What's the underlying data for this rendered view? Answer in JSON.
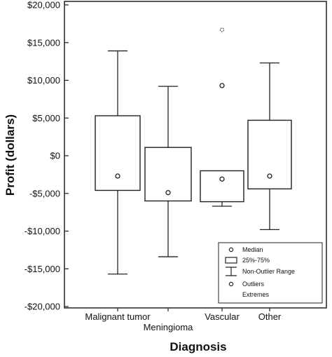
{
  "chart_data": {
    "type": "boxplot",
    "xlabel": "Diagnosis",
    "ylabel": "Profit (dollars)",
    "ylim": [
      -20000,
      20000
    ],
    "yticks": [
      20000,
      15000,
      10000,
      5000,
      0,
      -5000,
      -10000,
      -15000,
      -20000
    ],
    "ytick_labels": [
      "$20,000",
      "$15,000",
      "$10,000",
      "$5,000",
      "$0",
      "-$5,000",
      "-$10,000",
      "-$15,000",
      "-$20,000"
    ],
    "categories": [
      "Malignant tumor",
      "Meningioma",
      "Vascular",
      "Other"
    ],
    "boxes": [
      {
        "category": "Malignant tumor",
        "median": -2700,
        "q1": -4600,
        "q3": 5300,
        "whisker_low": -15700,
        "whisker_high": 13900,
        "outliers": [],
        "extremes": []
      },
      {
        "category": "Meningioma",
        "median": -4900,
        "q1": -6000,
        "q3": 1100,
        "whisker_low": -13400,
        "whisker_high": 9200,
        "outliers": [],
        "extremes": []
      },
      {
        "category": "Vascular",
        "median": -3100,
        "q1": -6100,
        "q3": -2000,
        "whisker_low": -6700,
        "whisker_high": -2000,
        "outliers": [
          9300
        ],
        "extremes": [
          16700
        ]
      },
      {
        "category": "Other",
        "median": -2700,
        "q1": -4400,
        "q3": 4700,
        "whisker_low": -9800,
        "whisker_high": 12300,
        "outliers": [],
        "extremes": []
      }
    ],
    "legend": {
      "position": "bottom-right",
      "entries": [
        "Median",
        "25%-75%",
        "Non-Outlier Range",
        "Outliers",
        "Extremes"
      ]
    },
    "grid": false
  }
}
